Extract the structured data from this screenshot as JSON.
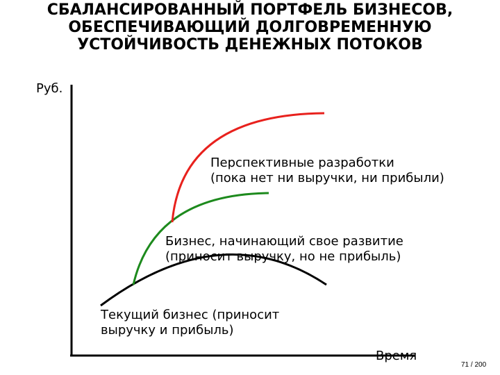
{
  "title": {
    "line1": "СБАЛАНСИРОВАННЫЙ ПОРТФЕЛЬ БИЗНЕСОВ,",
    "line2": "ОБЕСПЕЧИВАЮЩИЙ ДОЛГОВРЕМЕННУЮ",
    "line3": "УСТОЙЧИВОСТЬ ДЕНЕЖНЫХ ПОТОКОВ"
  },
  "axes": {
    "y_label": "Руб.",
    "x_label": "Время"
  },
  "curves": {
    "prospective": {
      "line1": "Перспективные разработки",
      "line2": "(пока нет ни выручки, ни прибыли)",
      "color": "#e8211d"
    },
    "developing": {
      "line1": "Бизнес, начинающий свое развитие",
      "line2": "(приносит выручку, но не прибыль)",
      "color": "#1d8a1d"
    },
    "current": {
      "line1": "Текущий бизнес (приносит",
      "line2": "выручку и прибыль)",
      "color": "#000000"
    }
  },
  "page_number": "71 / 200"
}
